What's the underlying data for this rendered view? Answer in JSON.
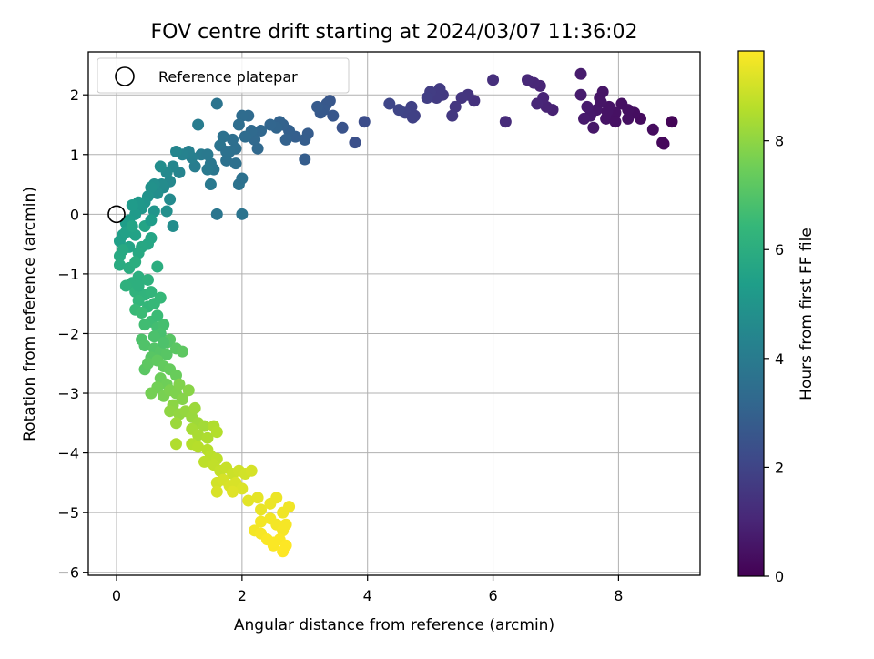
{
  "chart_data": {
    "type": "scatter",
    "title": "FOV centre drift starting at 2024/03/07 11:36:02",
    "xlabel": "Angular distance from reference (arcmin)",
    "ylabel": "Rotation from reference (arcmin)",
    "xlim": [
      -0.45,
      9.3
    ],
    "ylim": [
      -6.05,
      2.72
    ],
    "xticks": [
      0,
      2,
      4,
      6,
      8
    ],
    "yticks": [
      -6,
      -5,
      -4,
      -3,
      -2,
      -1,
      0,
      1,
      2
    ],
    "xtick_labels": [
      "0",
      "2",
      "4",
      "6",
      "8"
    ],
    "ytick_labels": [
      "−6",
      "−5",
      "−4",
      "−3",
      "−2",
      "−1",
      "0",
      "1",
      "2"
    ],
    "grid": true,
    "legend": {
      "placement": "top-left",
      "entries": [
        "Reference platepar"
      ]
    },
    "reference_point": {
      "x": 0,
      "y": 0
    },
    "colorbar": {
      "label": "Hours from first FF file",
      "range": [
        0,
        9.65
      ],
      "ticks": [
        0,
        2,
        4,
        6,
        8
      ],
      "tick_labels": [
        "0",
        "2",
        "4",
        "6",
        "8"
      ],
      "colormap": [
        "#440154",
        "#482878",
        "#3e4989",
        "#31688e",
        "#26828e",
        "#1f9e89",
        "#35b779",
        "#6ece58",
        "#b5de2b",
        "#fde725"
      ]
    },
    "points": [
      {
        "x": 8.85,
        "y": 1.55,
        "t": 0.1
      },
      {
        "x": 8.7,
        "y": 1.2,
        "t": 0.2
      },
      {
        "x": 8.72,
        "y": 1.18,
        "t": 0.2
      },
      {
        "x": 8.55,
        "y": 1.42,
        "t": 0.3
      },
      {
        "x": 8.35,
        "y": 1.6,
        "t": 0.3
      },
      {
        "x": 8.25,
        "y": 1.7,
        "t": 0.35
      },
      {
        "x": 8.15,
        "y": 1.6,
        "t": 0.4
      },
      {
        "x": 8.05,
        "y": 1.85,
        "t": 0.4
      },
      {
        "x": 7.95,
        "y": 1.7,
        "t": 0.45
      },
      {
        "x": 7.85,
        "y": 1.8,
        "t": 0.5
      },
      {
        "x": 7.8,
        "y": 1.6,
        "t": 0.5
      },
      {
        "x": 7.75,
        "y": 2.05,
        "t": 0.55
      },
      {
        "x": 7.7,
        "y": 1.95,
        "t": 0.55
      },
      {
        "x": 7.65,
        "y": 1.75,
        "t": 0.6
      },
      {
        "x": 7.6,
        "y": 1.45,
        "t": 0.6
      },
      {
        "x": 7.55,
        "y": 1.65,
        "t": 0.65
      },
      {
        "x": 7.5,
        "y": 1.8,
        "t": 0.7
      },
      {
        "x": 7.45,
        "y": 1.6,
        "t": 0.7
      },
      {
        "x": 7.4,
        "y": 2.35,
        "t": 0.75
      },
      {
        "x": 7.4,
        "y": 2.0,
        "t": 0.75
      },
      {
        "x": 7.95,
        "y": 1.55,
        "t": 0.45
      },
      {
        "x": 8.15,
        "y": 1.75,
        "t": 0.4
      },
      {
        "x": 7.72,
        "y": 1.88,
        "t": 0.55
      },
      {
        "x": 7.82,
        "y": 1.72,
        "t": 0.5
      },
      {
        "x": 6.95,
        "y": 1.75,
        "t": 0.9
      },
      {
        "x": 6.85,
        "y": 1.8,
        "t": 0.95
      },
      {
        "x": 6.8,
        "y": 1.95,
        "t": 1.0
      },
      {
        "x": 6.75,
        "y": 2.15,
        "t": 1.0
      },
      {
        "x": 6.65,
        "y": 2.2,
        "t": 1.05
      },
      {
        "x": 6.55,
        "y": 2.25,
        "t": 1.1
      },
      {
        "x": 6.7,
        "y": 1.85,
        "t": 1.05
      },
      {
        "x": 6.2,
        "y": 1.55,
        "t": 1.2
      },
      {
        "x": 6.0,
        "y": 2.25,
        "t": 1.3
      },
      {
        "x": 5.7,
        "y": 1.9,
        "t": 1.4
      },
      {
        "x": 5.6,
        "y": 2.0,
        "t": 1.45
      },
      {
        "x": 5.5,
        "y": 1.95,
        "t": 1.5
      },
      {
        "x": 5.4,
        "y": 1.8,
        "t": 1.55
      },
      {
        "x": 5.35,
        "y": 1.65,
        "t": 1.6
      },
      {
        "x": 5.2,
        "y": 2.0,
        "t": 1.65
      },
      {
        "x": 5.15,
        "y": 2.1,
        "t": 1.7
      },
      {
        "x": 5.1,
        "y": 1.95,
        "t": 1.7
      },
      {
        "x": 5.0,
        "y": 2.05,
        "t": 1.75
      },
      {
        "x": 4.95,
        "y": 1.95,
        "t": 1.8
      },
      {
        "x": 4.75,
        "y": 1.65,
        "t": 1.85
      },
      {
        "x": 4.7,
        "y": 1.8,
        "t": 1.9
      },
      {
        "x": 4.6,
        "y": 1.7,
        "t": 1.95
      },
      {
        "x": 4.5,
        "y": 1.75,
        "t": 2.0
      },
      {
        "x": 4.35,
        "y": 1.85,
        "t": 2.05
      },
      {
        "x": 4.72,
        "y": 1.62,
        "t": 1.9
      },
      {
        "x": 3.95,
        "y": 1.55,
        "t": 2.3
      },
      {
        "x": 3.8,
        "y": 1.2,
        "t": 2.4
      },
      {
        "x": 3.6,
        "y": 1.45,
        "t": 2.5
      },
      {
        "x": 3.45,
        "y": 1.65,
        "t": 2.6
      },
      {
        "x": 3.4,
        "y": 1.9,
        "t": 2.6
      },
      {
        "x": 3.35,
        "y": 1.85,
        "t": 2.65
      },
      {
        "x": 3.3,
        "y": 1.75,
        "t": 2.7
      },
      {
        "x": 3.25,
        "y": 1.7,
        "t": 2.7
      },
      {
        "x": 3.2,
        "y": 1.8,
        "t": 2.75
      },
      {
        "x": 3.05,
        "y": 1.35,
        "t": 2.8
      },
      {
        "x": 3.0,
        "y": 1.25,
        "t": 2.85
      },
      {
        "x": 3.0,
        "y": 0.92,
        "t": 2.85
      },
      {
        "x": 2.85,
        "y": 1.3,
        "t": 2.9
      },
      {
        "x": 2.75,
        "y": 1.4,
        "t": 2.95
      },
      {
        "x": 2.7,
        "y": 1.25,
        "t": 3.0
      },
      {
        "x": 2.65,
        "y": 1.5,
        "t": 3.0
      },
      {
        "x": 2.6,
        "y": 1.55,
        "t": 3.05
      },
      {
        "x": 2.55,
        "y": 1.45,
        "t": 3.1
      },
      {
        "x": 2.45,
        "y": 1.5,
        "t": 3.15
      },
      {
        "x": 2.3,
        "y": 1.4,
        "t": 3.2
      },
      {
        "x": 2.25,
        "y": 1.1,
        "t": 3.25
      },
      {
        "x": 2.2,
        "y": 1.25,
        "t": 3.25
      },
      {
        "x": 2.15,
        "y": 1.4,
        "t": 3.3
      },
      {
        "x": 2.1,
        "y": 1.65,
        "t": 3.35
      },
      {
        "x": 2.05,
        "y": 1.3,
        "t": 3.4
      },
      {
        "x": 2.0,
        "y": 1.65,
        "t": 3.4
      },
      {
        "x": 1.95,
        "y": 1.5,
        "t": 3.45
      },
      {
        "x": 1.9,
        "y": 1.1,
        "t": 3.5
      },
      {
        "x": 1.85,
        "y": 1.25,
        "t": 3.5
      },
      {
        "x": 1.8,
        "y": 1.05,
        "t": 3.55
      },
      {
        "x": 1.75,
        "y": 0.9,
        "t": 3.6
      },
      {
        "x": 1.7,
        "y": 1.3,
        "t": 3.6
      },
      {
        "x": 1.95,
        "y": 0.5,
        "t": 3.65
      },
      {
        "x": 2.0,
        "y": 0.6,
        "t": 3.6
      },
      {
        "x": 2.0,
        "y": 0.0,
        "t": 3.7
      },
      {
        "x": 1.6,
        "y": 1.85,
        "t": 3.7
      },
      {
        "x": 1.6,
        "y": 0.0,
        "t": 3.8
      },
      {
        "x": 1.55,
        "y": 0.75,
        "t": 3.8
      },
      {
        "x": 1.5,
        "y": 0.85,
        "t": 3.85
      },
      {
        "x": 1.5,
        "y": 0.5,
        "t": 3.9
      },
      {
        "x": 1.45,
        "y": 0.75,
        "t": 3.9
      },
      {
        "x": 1.35,
        "y": 1.0,
        "t": 4.0
      },
      {
        "x": 1.3,
        "y": 1.5,
        "t": 4.05
      },
      {
        "x": 1.25,
        "y": 0.8,
        "t": 4.1
      },
      {
        "x": 1.2,
        "y": 0.95,
        "t": 4.15
      },
      {
        "x": 1.15,
        "y": 1.05,
        "t": 4.2
      },
      {
        "x": 1.05,
        "y": 1.0,
        "t": 4.3
      },
      {
        "x": 1.0,
        "y": 0.7,
        "t": 4.35
      },
      {
        "x": 0.95,
        "y": 1.05,
        "t": 4.4
      },
      {
        "x": 0.9,
        "y": 0.8,
        "t": 4.45
      },
      {
        "x": 0.85,
        "y": 0.55,
        "t": 4.5
      },
      {
        "x": 0.8,
        "y": 0.7,
        "t": 4.55
      },
      {
        "x": 0.75,
        "y": 0.45,
        "t": 4.6
      },
      {
        "x": 0.72,
        "y": 0.5,
        "t": 4.65
      },
      {
        "x": 0.7,
        "y": 0.8,
        "t": 4.7
      },
      {
        "x": 0.65,
        "y": 0.35,
        "t": 4.75
      },
      {
        "x": 0.6,
        "y": 0.5,
        "t": 4.8
      },
      {
        "x": 0.55,
        "y": 0.45,
        "t": 4.85
      },
      {
        "x": 0.5,
        "y": 0.3,
        "t": 4.9
      },
      {
        "x": 0.85,
        "y": 0.25,
        "t": 4.6
      },
      {
        "x": 0.9,
        "y": -0.2,
        "t": 4.7
      },
      {
        "x": 0.8,
        "y": 0.05,
        "t": 4.8
      },
      {
        "x": 0.45,
        "y": 0.2,
        "t": 5.0
      },
      {
        "x": 0.4,
        "y": 0.1,
        "t": 5.1
      },
      {
        "x": 0.35,
        "y": 0.2,
        "t": 5.15
      },
      {
        "x": 0.3,
        "y": 0.0,
        "t": 5.2
      },
      {
        "x": 0.25,
        "y": 0.15,
        "t": 5.25
      },
      {
        "x": 0.2,
        "y": -0.1,
        "t": 5.3
      },
      {
        "x": 0.15,
        "y": -0.15,
        "t": 5.35
      },
      {
        "x": 0.1,
        "y": -0.35,
        "t": 5.4
      },
      {
        "x": 0.05,
        "y": -0.45,
        "t": 5.45
      },
      {
        "x": 0.15,
        "y": -0.3,
        "t": 5.5
      },
      {
        "x": 0.3,
        "y": -0.35,
        "t": 5.55
      },
      {
        "x": 0.25,
        "y": -0.2,
        "t": 5.6
      },
      {
        "x": 0.45,
        "y": -0.2,
        "t": 5.6
      },
      {
        "x": 0.55,
        "y": -0.4,
        "t": 5.65
      },
      {
        "x": 0.5,
        "y": -0.5,
        "t": 5.7
      },
      {
        "x": 0.4,
        "y": -0.55,
        "t": 5.75
      },
      {
        "x": 0.35,
        "y": -0.65,
        "t": 5.8
      },
      {
        "x": 0.05,
        "y": -0.7,
        "t": 5.85
      },
      {
        "x": 0.05,
        "y": -0.85,
        "t": 5.9
      },
      {
        "x": 0.2,
        "y": -0.9,
        "t": 5.95
      },
      {
        "x": 0.3,
        "y": -0.8,
        "t": 6.0
      },
      {
        "x": 0.65,
        "y": -0.88,
        "t": 6.0
      },
      {
        "x": 0.35,
        "y": -1.05,
        "t": 6.05
      },
      {
        "x": 0.25,
        "y": -1.15,
        "t": 6.1
      },
      {
        "x": 0.15,
        "y": -1.2,
        "t": 6.15
      },
      {
        "x": 0.3,
        "y": -1.3,
        "t": 6.2
      },
      {
        "x": 0.45,
        "y": -1.35,
        "t": 6.25
      },
      {
        "x": 0.55,
        "y": -1.3,
        "t": 6.3
      },
      {
        "x": 0.35,
        "y": -1.45,
        "t": 6.35
      },
      {
        "x": 0.5,
        "y": -1.55,
        "t": 6.4
      },
      {
        "x": 0.6,
        "y": -1.5,
        "t": 6.45
      },
      {
        "x": 0.7,
        "y": -1.4,
        "t": 6.45
      },
      {
        "x": 0.3,
        "y": -1.6,
        "t": 6.5
      },
      {
        "x": 0.4,
        "y": -1.65,
        "t": 6.55
      },
      {
        "x": 0.55,
        "y": -1.8,
        "t": 6.6
      },
      {
        "x": 0.45,
        "y": -1.85,
        "t": 6.65
      },
      {
        "x": 0.65,
        "y": -1.9,
        "t": 6.7
      },
      {
        "x": 0.75,
        "y": -1.85,
        "t": 6.75
      },
      {
        "x": 0.7,
        "y": -2.0,
        "t": 6.8
      },
      {
        "x": 0.6,
        "y": -2.05,
        "t": 6.85
      },
      {
        "x": 0.4,
        "y": -2.1,
        "t": 6.9
      },
      {
        "x": 0.45,
        "y": -2.2,
        "t": 6.95
      },
      {
        "x": 0.6,
        "y": -2.25,
        "t": 7.0
      },
      {
        "x": 0.7,
        "y": -2.3,
        "t": 7.05
      },
      {
        "x": 0.8,
        "y": -2.35,
        "t": 7.1
      },
      {
        "x": 0.85,
        "y": -2.1,
        "t": 7.1
      },
      {
        "x": 0.95,
        "y": -2.25,
        "t": 7.15
      },
      {
        "x": 1.05,
        "y": -2.3,
        "t": 7.2
      },
      {
        "x": 0.8,
        "y": -2.15,
        "t": 7.05
      },
      {
        "x": 0.55,
        "y": -2.4,
        "t": 7.1
      },
      {
        "x": 0.45,
        "y": -2.6,
        "t": 7.15
      },
      {
        "x": 0.5,
        "y": -2.5,
        "t": 7.2
      },
      {
        "x": 0.65,
        "y": -2.45,
        "t": 7.25
      },
      {
        "x": 0.75,
        "y": -2.55,
        "t": 7.3
      },
      {
        "x": 0.85,
        "y": -2.6,
        "t": 7.35
      },
      {
        "x": 0.95,
        "y": -2.7,
        "t": 7.4
      },
      {
        "x": 0.7,
        "y": -2.75,
        "t": 7.45
      },
      {
        "x": 0.8,
        "y": -2.85,
        "t": 7.5
      },
      {
        "x": 0.65,
        "y": -2.9,
        "t": 7.55
      },
      {
        "x": 0.55,
        "y": -3.0,
        "t": 7.6
      },
      {
        "x": 0.75,
        "y": -3.05,
        "t": 7.65
      },
      {
        "x": 0.85,
        "y": -2.95,
        "t": 7.7
      },
      {
        "x": 0.95,
        "y": -3.0,
        "t": 7.75
      },
      {
        "x": 1.0,
        "y": -2.85,
        "t": 7.8
      },
      {
        "x": 1.05,
        "y": -3.1,
        "t": 7.85
      },
      {
        "x": 1.15,
        "y": -2.95,
        "t": 7.9
      },
      {
        "x": 0.9,
        "y": -3.2,
        "t": 7.95
      },
      {
        "x": 0.85,
        "y": -3.3,
        "t": 8.0
      },
      {
        "x": 1.0,
        "y": -3.35,
        "t": 8.05
      },
      {
        "x": 1.1,
        "y": -3.3,
        "t": 8.1
      },
      {
        "x": 1.2,
        "y": -3.4,
        "t": 8.15
      },
      {
        "x": 0.95,
        "y": -3.5,
        "t": 8.2
      },
      {
        "x": 1.25,
        "y": -3.25,
        "t": 8.2
      },
      {
        "x": 1.3,
        "y": -3.5,
        "t": 8.25
      },
      {
        "x": 1.4,
        "y": -3.55,
        "t": 8.3
      },
      {
        "x": 1.2,
        "y": -3.6,
        "t": 8.35
      },
      {
        "x": 1.3,
        "y": -3.7,
        "t": 8.4
      },
      {
        "x": 1.45,
        "y": -3.75,
        "t": 8.45
      },
      {
        "x": 1.55,
        "y": -3.55,
        "t": 8.5
      },
      {
        "x": 1.6,
        "y": -3.65,
        "t": 8.55
      },
      {
        "x": 1.2,
        "y": -3.85,
        "t": 8.55
      },
      {
        "x": 1.3,
        "y": -3.9,
        "t": 8.6
      },
      {
        "x": 1.45,
        "y": -3.95,
        "t": 8.6
      },
      {
        "x": 1.5,
        "y": -4.05,
        "t": 8.65
      },
      {
        "x": 1.6,
        "y": -4.1,
        "t": 8.7
      },
      {
        "x": 0.95,
        "y": -3.85,
        "t": 8.5
      },
      {
        "x": 1.4,
        "y": -4.15,
        "t": 8.7
      },
      {
        "x": 1.55,
        "y": -4.2,
        "t": 8.75
      },
      {
        "x": 1.65,
        "y": -4.3,
        "t": 8.8
      },
      {
        "x": 1.75,
        "y": -4.25,
        "t": 8.85
      },
      {
        "x": 1.85,
        "y": -4.35,
        "t": 8.9
      },
      {
        "x": 1.95,
        "y": -4.3,
        "t": 8.95
      },
      {
        "x": 2.05,
        "y": -4.35,
        "t": 9.0
      },
      {
        "x": 2.15,
        "y": -4.3,
        "t": 9.05
      },
      {
        "x": 1.6,
        "y": -4.5,
        "t": 9.0
      },
      {
        "x": 1.7,
        "y": -4.45,
        "t": 9.05
      },
      {
        "x": 1.8,
        "y": -4.55,
        "t": 9.1
      },
      {
        "x": 1.9,
        "y": -4.5,
        "t": 9.1
      },
      {
        "x": 2.0,
        "y": -4.6,
        "t": 9.15
      },
      {
        "x": 1.6,
        "y": -4.65,
        "t": 9.1
      },
      {
        "x": 1.85,
        "y": -4.65,
        "t": 9.2
      },
      {
        "x": 2.1,
        "y": -4.8,
        "t": 9.25
      },
      {
        "x": 2.25,
        "y": -4.75,
        "t": 9.3
      },
      {
        "x": 2.3,
        "y": -4.95,
        "t": 9.35
      },
      {
        "x": 2.45,
        "y": -4.85,
        "t": 9.4
      },
      {
        "x": 2.55,
        "y": -4.75,
        "t": 9.4
      },
      {
        "x": 2.65,
        "y": -5.0,
        "t": 9.45
      },
      {
        "x": 2.75,
        "y": -4.9,
        "t": 9.45
      },
      {
        "x": 2.3,
        "y": -5.15,
        "t": 9.5
      },
      {
        "x": 2.45,
        "y": -5.1,
        "t": 9.5
      },
      {
        "x": 2.55,
        "y": -5.2,
        "t": 9.5
      },
      {
        "x": 2.65,
        "y": -5.3,
        "t": 9.55
      },
      {
        "x": 2.7,
        "y": -5.2,
        "t": 9.55
      },
      {
        "x": 2.2,
        "y": -5.3,
        "t": 9.5
      },
      {
        "x": 2.3,
        "y": -5.35,
        "t": 9.55
      },
      {
        "x": 2.4,
        "y": -5.45,
        "t": 9.6
      },
      {
        "x": 2.5,
        "y": -5.55,
        "t": 9.6
      },
      {
        "x": 2.6,
        "y": -5.45,
        "t": 9.6
      },
      {
        "x": 2.7,
        "y": -5.55,
        "t": 9.65
      },
      {
        "x": 2.65,
        "y": -5.65,
        "t": 9.65
      },
      {
        "x": 2.5,
        "y": -5.5,
        "t": 9.6
      },
      {
        "x": 1.45,
        "y": 1.0,
        "t": 3.9
      },
      {
        "x": 1.65,
        "y": 1.15,
        "t": 3.7
      },
      {
        "x": 1.75,
        "y": 1.05,
        "t": 3.6
      },
      {
        "x": 1.9,
        "y": 0.85,
        "t": 3.55
      },
      {
        "x": 0.6,
        "y": 0.05,
        "t": 5.0
      },
      {
        "x": 0.55,
        "y": -0.1,
        "t": 5.3
      },
      {
        "x": 0.2,
        "y": -0.55,
        "t": 5.6
      },
      {
        "x": 0.1,
        "y": -0.6,
        "t": 5.8
      },
      {
        "x": 0.35,
        "y": -1.2,
        "t": 6.1
      },
      {
        "x": 0.5,
        "y": -1.1,
        "t": 6.15
      },
      {
        "x": 0.65,
        "y": -1.7,
        "t": 6.55
      },
      {
        "x": 0.75,
        "y": -2.15,
        "t": 6.9
      }
    ]
  }
}
